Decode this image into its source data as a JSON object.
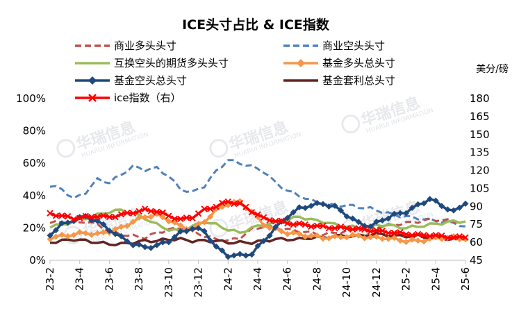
{
  "chart_data": {
    "type": "line",
    "title": "ICE头寸占比 & ICE指数",
    "right_axis_unit": "美分/磅",
    "left_axis": {
      "ylim": [
        0,
        100
      ],
      "ticks": [
        "0%",
        "20%",
        "40%",
        "60%",
        "80%",
        "100%"
      ]
    },
    "right_axis": {
      "ylim": [
        45,
        180
      ],
      "ticks": [
        "45",
        "60",
        "75",
        "90",
        "105",
        "120",
        "135",
        "150",
        "165",
        "180"
      ]
    },
    "x_labels": [
      "23-2",
      "23-4",
      "23-6",
      "23-8",
      "23-10",
      "23-12",
      "24-2",
      "24-4",
      "24-6",
      "24-8",
      "24-10",
      "24-12",
      "25-2",
      "25-4",
      "25-6"
    ],
    "watermark": {
      "brand": "华瑞信息",
      "sub": "HUARUI INFORMATION"
    },
    "series": [
      {
        "name": "商业多头头寸",
        "axis": "left",
        "color": "#c0504d",
        "style": "dashed",
        "points": [
          [
            0,
            23
          ],
          [
            2,
            24
          ],
          [
            4,
            23
          ],
          [
            6,
            24
          ],
          [
            8,
            22
          ],
          [
            10,
            18
          ],
          [
            12,
            16
          ],
          [
            14,
            15
          ],
          [
            16,
            14
          ],
          [
            18,
            17
          ],
          [
            20,
            19
          ],
          [
            22,
            20
          ],
          [
            24,
            18
          ],
          [
            26,
            15
          ],
          [
            28,
            13
          ],
          [
            30,
            12
          ],
          [
            32,
            14
          ],
          [
            34,
            19
          ],
          [
            36,
            21
          ],
          [
            38,
            20
          ],
          [
            40,
            19
          ],
          [
            42,
            18
          ],
          [
            44,
            17
          ],
          [
            46,
            16
          ],
          [
            48,
            17
          ],
          [
            50,
            18
          ],
          [
            52,
            19
          ],
          [
            54,
            20
          ],
          [
            56,
            21
          ],
          [
            58,
            22
          ],
          [
            60,
            23
          ],
          [
            62,
            24
          ],
          [
            64,
            25
          ],
          [
            66,
            25
          ],
          [
            68,
            24
          ],
          [
            70,
            24
          ]
        ]
      },
      {
        "name": "商业空头头寸",
        "axis": "left",
        "color": "#4f81bd",
        "style": "dashed",
        "points": [
          [
            0,
            46
          ],
          [
            2,
            44
          ],
          [
            4,
            38
          ],
          [
            6,
            42
          ],
          [
            8,
            50
          ],
          [
            10,
            48
          ],
          [
            12,
            53
          ],
          [
            14,
            58
          ],
          [
            16,
            56
          ],
          [
            18,
            57
          ],
          [
            20,
            52
          ],
          [
            22,
            44
          ],
          [
            24,
            42
          ],
          [
            26,
            46
          ],
          [
            28,
            55
          ],
          [
            30,
            62
          ],
          [
            32,
            60
          ],
          [
            34,
            58
          ],
          [
            36,
            55
          ],
          [
            38,
            48
          ],
          [
            40,
            43
          ],
          [
            42,
            40
          ],
          [
            44,
            37
          ],
          [
            46,
            35
          ],
          [
            48,
            34
          ],
          [
            50,
            34
          ],
          [
            52,
            33
          ],
          [
            54,
            32
          ],
          [
            56,
            30
          ],
          [
            58,
            28
          ],
          [
            60,
            27
          ],
          [
            62,
            26
          ],
          [
            64,
            25
          ],
          [
            66,
            24
          ],
          [
            68,
            23
          ],
          [
            70,
            21
          ]
        ]
      },
      {
        "name": "互换空头的期货多头头寸",
        "axis": "left",
        "color": "#9bbb59",
        "style": "solid",
        "points": [
          [
            0,
            21
          ],
          [
            2,
            22
          ],
          [
            4,
            24
          ],
          [
            6,
            26
          ],
          [
            8,
            28
          ],
          [
            10,
            30
          ],
          [
            12,
            31
          ],
          [
            14,
            29
          ],
          [
            16,
            26
          ],
          [
            18,
            22
          ],
          [
            20,
            19
          ],
          [
            22,
            18
          ],
          [
            24,
            21
          ],
          [
            26,
            24
          ],
          [
            28,
            22
          ],
          [
            30,
            19
          ],
          [
            32,
            17
          ],
          [
            34,
            20
          ],
          [
            36,
            22
          ],
          [
            38,
            23
          ],
          [
            40,
            25
          ],
          [
            42,
            27
          ],
          [
            44,
            25
          ],
          [
            46,
            24
          ],
          [
            48,
            22
          ],
          [
            50,
            21
          ],
          [
            52,
            20
          ],
          [
            54,
            21
          ],
          [
            56,
            22
          ],
          [
            58,
            21
          ],
          [
            60,
            20
          ],
          [
            62,
            21
          ],
          [
            64,
            22
          ],
          [
            66,
            23
          ],
          [
            68,
            24
          ],
          [
            70,
            24
          ]
        ]
      },
      {
        "name": "基金多头总头寸",
        "axis": "left",
        "color": "#f79646",
        "style": "solid-marker",
        "points": [
          [
            0,
            14
          ],
          [
            2,
            15
          ],
          [
            4,
            16
          ],
          [
            6,
            17
          ],
          [
            8,
            16
          ],
          [
            10,
            18
          ],
          [
            12,
            20
          ],
          [
            14,
            24
          ],
          [
            16,
            27
          ],
          [
            18,
            28
          ],
          [
            20,
            25
          ],
          [
            22,
            21
          ],
          [
            24,
            19
          ],
          [
            26,
            24
          ],
          [
            28,
            31
          ],
          [
            30,
            35
          ],
          [
            32,
            36
          ],
          [
            34,
            30
          ],
          [
            36,
            22
          ],
          [
            38,
            19
          ],
          [
            40,
            17
          ],
          [
            42,
            16
          ],
          [
            44,
            15
          ],
          [
            46,
            14
          ],
          [
            48,
            14
          ],
          [
            50,
            15
          ],
          [
            52,
            15
          ],
          [
            54,
            14
          ],
          [
            56,
            14
          ],
          [
            58,
            13
          ],
          [
            60,
            12
          ],
          [
            62,
            12
          ],
          [
            64,
            13
          ],
          [
            66,
            14
          ],
          [
            68,
            14
          ],
          [
            70,
            13
          ]
        ]
      },
      {
        "name": "基金空头总头寸",
        "axis": "left",
        "color": "#1f497d",
        "style": "solid-marker",
        "points": [
          [
            0,
            16
          ],
          [
            2,
            22
          ],
          [
            4,
            25
          ],
          [
            6,
            27
          ],
          [
            8,
            24
          ],
          [
            10,
            19
          ],
          [
            12,
            14
          ],
          [
            14,
            10
          ],
          [
            16,
            8
          ],
          [
            18,
            9
          ],
          [
            20,
            12
          ],
          [
            22,
            17
          ],
          [
            24,
            20
          ],
          [
            26,
            18
          ],
          [
            28,
            8
          ],
          [
            30,
            3
          ],
          [
            32,
            3
          ],
          [
            34,
            4
          ],
          [
            36,
            12
          ],
          [
            38,
            20
          ],
          [
            40,
            27
          ],
          [
            42,
            32
          ],
          [
            44,
            34
          ],
          [
            46,
            35
          ],
          [
            48,
            33
          ],
          [
            50,
            28
          ],
          [
            52,
            23
          ],
          [
            54,
            21
          ],
          [
            56,
            25
          ],
          [
            58,
            28
          ],
          [
            60,
            30
          ],
          [
            62,
            34
          ],
          [
            64,
            38
          ],
          [
            66,
            34
          ],
          [
            68,
            30
          ],
          [
            70,
            35
          ]
        ]
      },
      {
        "name": "基金套利总头寸",
        "axis": "left",
        "color": "#632523",
        "style": "solid",
        "points": [
          [
            0,
            11
          ],
          [
            2,
            12
          ],
          [
            4,
            13
          ],
          [
            6,
            12
          ],
          [
            8,
            11
          ],
          [
            10,
            10
          ],
          [
            12,
            10
          ],
          [
            14,
            11
          ],
          [
            16,
            12
          ],
          [
            18,
            12
          ],
          [
            20,
            13
          ],
          [
            22,
            13
          ],
          [
            24,
            12
          ],
          [
            26,
            12
          ],
          [
            28,
            12
          ],
          [
            30,
            11
          ],
          [
            32,
            11
          ],
          [
            34,
            11
          ],
          [
            36,
            12
          ],
          [
            38,
            13
          ],
          [
            40,
            13
          ],
          [
            42,
            13
          ],
          [
            44,
            14
          ],
          [
            46,
            14
          ],
          [
            48,
            15
          ],
          [
            50,
            15
          ],
          [
            52,
            15
          ],
          [
            54,
            16
          ],
          [
            56,
            16
          ],
          [
            58,
            15
          ],
          [
            60,
            15
          ],
          [
            62,
            15
          ],
          [
            64,
            14
          ],
          [
            66,
            14
          ],
          [
            68,
            13
          ],
          [
            70,
            13
          ]
        ]
      },
      {
        "name": "ice指数（右）",
        "axis": "right",
        "color": "#ff0000",
        "style": "solid-marker",
        "points": [
          [
            0,
            84
          ],
          [
            2,
            82
          ],
          [
            4,
            80
          ],
          [
            6,
            81
          ],
          [
            8,
            82
          ],
          [
            10,
            81
          ],
          [
            12,
            83
          ],
          [
            14,
            85
          ],
          [
            16,
            87
          ],
          [
            18,
            86
          ],
          [
            20,
            82
          ],
          [
            22,
            79
          ],
          [
            24,
            81
          ],
          [
            26,
            87
          ],
          [
            28,
            90
          ],
          [
            30,
            94
          ],
          [
            32,
            92
          ],
          [
            34,
            86
          ],
          [
            36,
            80
          ],
          [
            38,
            78
          ],
          [
            40,
            76
          ],
          [
            42,
            75
          ],
          [
            44,
            74
          ],
          [
            46,
            73
          ],
          [
            48,
            72
          ],
          [
            50,
            72
          ],
          [
            52,
            71
          ],
          [
            54,
            70
          ],
          [
            56,
            69
          ],
          [
            58,
            68
          ],
          [
            60,
            67
          ],
          [
            62,
            66
          ],
          [
            64,
            66
          ],
          [
            66,
            65
          ],
          [
            68,
            64
          ],
          [
            70,
            64
          ]
        ]
      }
    ]
  }
}
